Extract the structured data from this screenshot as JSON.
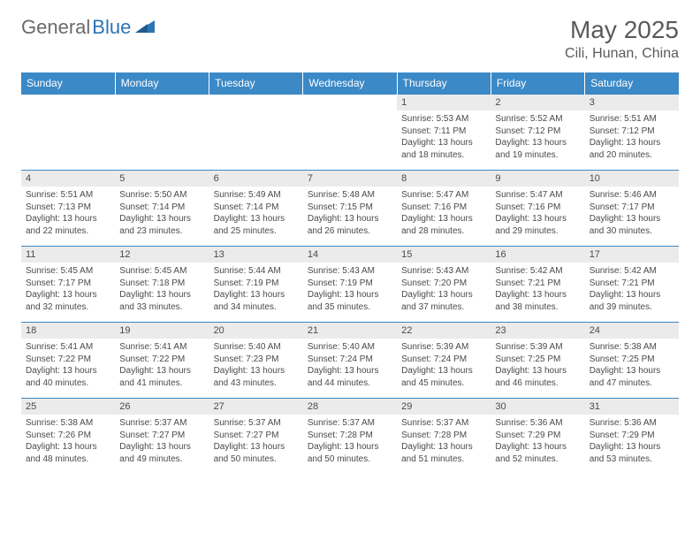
{
  "brand": {
    "general": "General",
    "blue": "Blue"
  },
  "title": "May 2025",
  "location": "Cili, Hunan, China",
  "colors": {
    "header_bg": "#3b89c7",
    "header_text": "#ffffff",
    "daynum_bg": "#ebebeb",
    "text": "#4a4a4a",
    "rule": "#3b89c7",
    "background": "#ffffff"
  },
  "day_headers": [
    "Sunday",
    "Monday",
    "Tuesday",
    "Wednesday",
    "Thursday",
    "Friday",
    "Saturday"
  ],
  "weeks": [
    [
      null,
      null,
      null,
      null,
      {
        "num": "1",
        "sunrise": "5:53 AM",
        "sunset": "7:11 PM",
        "daylight": "13 hours and 18 minutes."
      },
      {
        "num": "2",
        "sunrise": "5:52 AM",
        "sunset": "7:12 PM",
        "daylight": "13 hours and 19 minutes."
      },
      {
        "num": "3",
        "sunrise": "5:51 AM",
        "sunset": "7:12 PM",
        "daylight": "13 hours and 20 minutes."
      }
    ],
    [
      {
        "num": "4",
        "sunrise": "5:51 AM",
        "sunset": "7:13 PM",
        "daylight": "13 hours and 22 minutes."
      },
      {
        "num": "5",
        "sunrise": "5:50 AM",
        "sunset": "7:14 PM",
        "daylight": "13 hours and 23 minutes."
      },
      {
        "num": "6",
        "sunrise": "5:49 AM",
        "sunset": "7:14 PM",
        "daylight": "13 hours and 25 minutes."
      },
      {
        "num": "7",
        "sunrise": "5:48 AM",
        "sunset": "7:15 PM",
        "daylight": "13 hours and 26 minutes."
      },
      {
        "num": "8",
        "sunrise": "5:47 AM",
        "sunset": "7:16 PM",
        "daylight": "13 hours and 28 minutes."
      },
      {
        "num": "9",
        "sunrise": "5:47 AM",
        "sunset": "7:16 PM",
        "daylight": "13 hours and 29 minutes."
      },
      {
        "num": "10",
        "sunrise": "5:46 AM",
        "sunset": "7:17 PM",
        "daylight": "13 hours and 30 minutes."
      }
    ],
    [
      {
        "num": "11",
        "sunrise": "5:45 AM",
        "sunset": "7:17 PM",
        "daylight": "13 hours and 32 minutes."
      },
      {
        "num": "12",
        "sunrise": "5:45 AM",
        "sunset": "7:18 PM",
        "daylight": "13 hours and 33 minutes."
      },
      {
        "num": "13",
        "sunrise": "5:44 AM",
        "sunset": "7:19 PM",
        "daylight": "13 hours and 34 minutes."
      },
      {
        "num": "14",
        "sunrise": "5:43 AM",
        "sunset": "7:19 PM",
        "daylight": "13 hours and 35 minutes."
      },
      {
        "num": "15",
        "sunrise": "5:43 AM",
        "sunset": "7:20 PM",
        "daylight": "13 hours and 37 minutes."
      },
      {
        "num": "16",
        "sunrise": "5:42 AM",
        "sunset": "7:21 PM",
        "daylight": "13 hours and 38 minutes."
      },
      {
        "num": "17",
        "sunrise": "5:42 AM",
        "sunset": "7:21 PM",
        "daylight": "13 hours and 39 minutes."
      }
    ],
    [
      {
        "num": "18",
        "sunrise": "5:41 AM",
        "sunset": "7:22 PM",
        "daylight": "13 hours and 40 minutes."
      },
      {
        "num": "19",
        "sunrise": "5:41 AM",
        "sunset": "7:22 PM",
        "daylight": "13 hours and 41 minutes."
      },
      {
        "num": "20",
        "sunrise": "5:40 AM",
        "sunset": "7:23 PM",
        "daylight": "13 hours and 43 minutes."
      },
      {
        "num": "21",
        "sunrise": "5:40 AM",
        "sunset": "7:24 PM",
        "daylight": "13 hours and 44 minutes."
      },
      {
        "num": "22",
        "sunrise": "5:39 AM",
        "sunset": "7:24 PM",
        "daylight": "13 hours and 45 minutes."
      },
      {
        "num": "23",
        "sunrise": "5:39 AM",
        "sunset": "7:25 PM",
        "daylight": "13 hours and 46 minutes."
      },
      {
        "num": "24",
        "sunrise": "5:38 AM",
        "sunset": "7:25 PM",
        "daylight": "13 hours and 47 minutes."
      }
    ],
    [
      {
        "num": "25",
        "sunrise": "5:38 AM",
        "sunset": "7:26 PM",
        "daylight": "13 hours and 48 minutes."
      },
      {
        "num": "26",
        "sunrise": "5:37 AM",
        "sunset": "7:27 PM",
        "daylight": "13 hours and 49 minutes."
      },
      {
        "num": "27",
        "sunrise": "5:37 AM",
        "sunset": "7:27 PM",
        "daylight": "13 hours and 50 minutes."
      },
      {
        "num": "28",
        "sunrise": "5:37 AM",
        "sunset": "7:28 PM",
        "daylight": "13 hours and 50 minutes."
      },
      {
        "num": "29",
        "sunrise": "5:37 AM",
        "sunset": "7:28 PM",
        "daylight": "13 hours and 51 minutes."
      },
      {
        "num": "30",
        "sunrise": "5:36 AM",
        "sunset": "7:29 PM",
        "daylight": "13 hours and 52 minutes."
      },
      {
        "num": "31",
        "sunrise": "5:36 AM",
        "sunset": "7:29 PM",
        "daylight": "13 hours and 53 minutes."
      }
    ]
  ]
}
